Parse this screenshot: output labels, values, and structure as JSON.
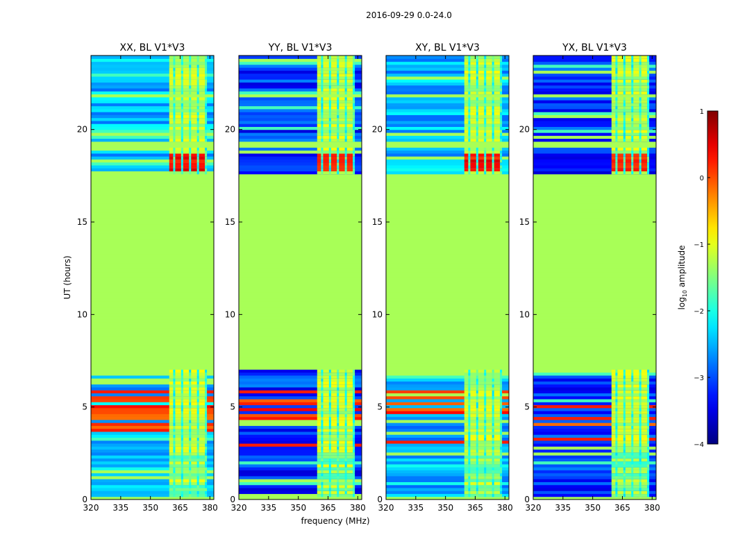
{
  "chart_data": {
    "type": "heatmap",
    "title": "2016-09-29 0.0-24.0",
    "xlabel": "frequency (MHz)",
    "ylabel": "UT (hours)",
    "xlim": [
      320,
      382
    ],
    "ylim": [
      0,
      24
    ],
    "x_ticks": [
      "320",
      "335",
      "350",
      "365",
      "380"
    ],
    "x_tick_values": [
      320,
      335,
      350,
      365,
      380
    ],
    "y_ticks": [
      "0",
      "5",
      "10",
      "15",
      "20"
    ],
    "y_tick_values": [
      0,
      5,
      10,
      15,
      20
    ],
    "panels": [
      {
        "title": "XX, BL V1*V3",
        "strength": 1.0
      },
      {
        "title": "YY, BL V1*V3",
        "strength": 0.6
      },
      {
        "title": "XY, BL V1*V3",
        "strength": 1.0
      },
      {
        "title": "YX, BL V1*V3",
        "strength": 0.55
      }
    ],
    "flagged_value": -1.3,
    "flagged_ranges_hours": [
      [
        7.05,
        17.55
      ],
      [
        21.8,
        22.0
      ],
      [
        19.0,
        19.3
      ],
      [
        0.0,
        0.1
      ]
    ],
    "rfi_band_mhz": [
      359.5,
      378.5
    ],
    "rfi_channels_mhz": [
      360,
      362,
      364,
      366,
      368,
      370,
      372,
      374,
      376,
      378
    ],
    "colorbar": {
      "label_prefix": "log",
      "label_sub": "10",
      "label_suffix": " amplitude",
      "min": -4,
      "max": 1,
      "ticks": [
        "1",
        "0",
        "−1",
        "−2",
        "−3",
        "−4"
      ],
      "tick_values": [
        1,
        0,
        -1,
        -2,
        -3,
        -4
      ],
      "colormap": "jet"
    }
  }
}
